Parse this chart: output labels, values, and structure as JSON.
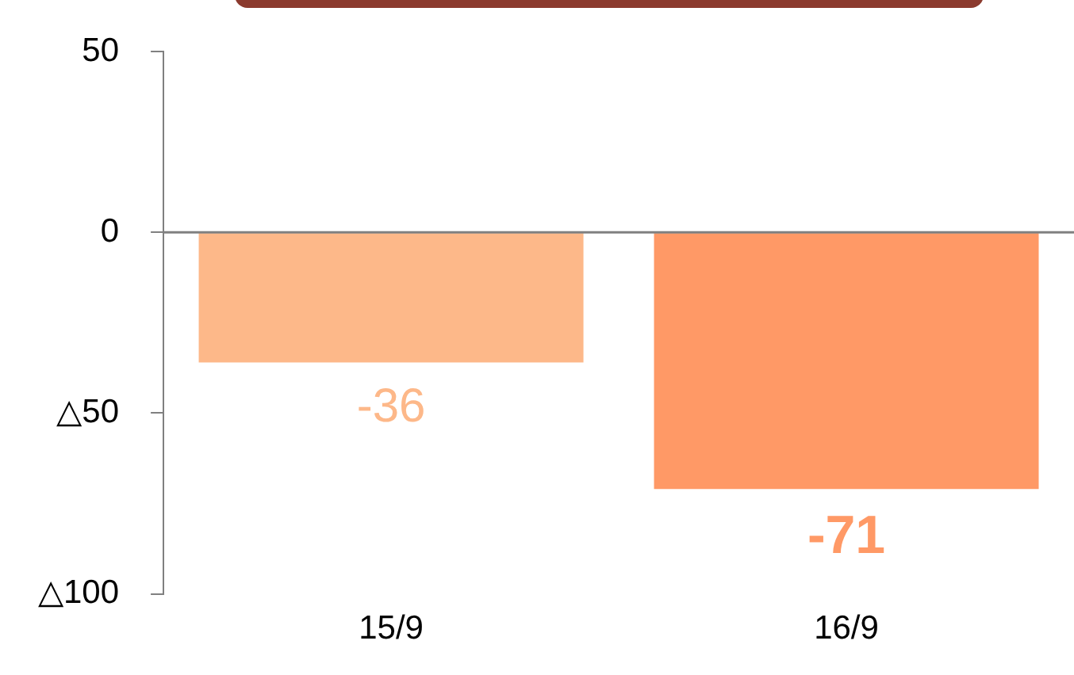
{
  "chart_data": {
    "type": "bar",
    "categories": [
      "15/9",
      "16/9"
    ],
    "values": [
      -36,
      -71
    ],
    "colors": [
      "#fdb889",
      "#ff9966"
    ],
    "ylim": [
      -100,
      50
    ],
    "yticks": [
      50,
      0,
      {
        "value": -50,
        "label": "△50"
      },
      {
        "value": -100,
        "label": "△100"
      }
    ],
    "grid": false,
    "legend": false,
    "data_labels": true,
    "ref_lines": [
      {
        "axis": "y",
        "value": 0,
        "color": "#808080"
      }
    ]
  }
}
